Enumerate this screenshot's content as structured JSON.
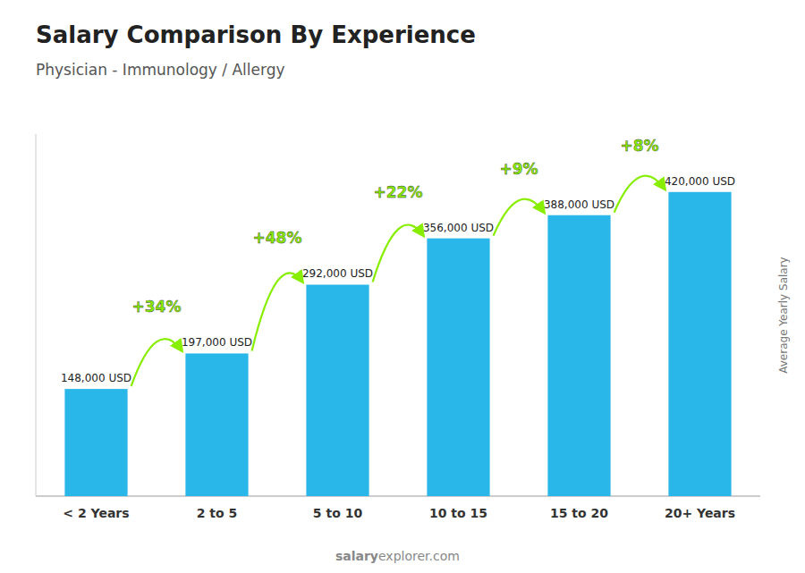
{
  "chart_data": {
    "type": "bar",
    "title": "Salary Comparison By Experience",
    "subtitle": "Physician - Immunology / Allergy",
    "ylabel": "Average Yearly Salary",
    "categories": [
      "< 2 Years",
      "2 to 5",
      "5 to 10",
      "10 to 15",
      "15 to 20",
      "20+ Years"
    ],
    "values": [
      148000,
      197000,
      292000,
      356000,
      388000,
      420000
    ],
    "value_labels": [
      "148,000 USD",
      "197,000 USD",
      "292,000 USD",
      "356,000 USD",
      "388,000 USD",
      "420,000 USD"
    ],
    "data_labels": true,
    "color": "#29b6e8",
    "annotations": [
      {
        "text": "+34%",
        "color": "#88ee00"
      },
      {
        "text": "+48%",
        "color": "#88ee00"
      },
      {
        "text": "+22%",
        "color": "#88ee00"
      },
      {
        "text": "+9%",
        "color": "#88ee00"
      },
      {
        "text": "+8%",
        "color": "#88ee00"
      }
    ],
    "watermark": [
      "salary",
      "explorer.com"
    ],
    "ylim": [
      0,
      500000
    ],
    "yticks": [],
    "tick_labels": "x",
    "grid": false
  }
}
